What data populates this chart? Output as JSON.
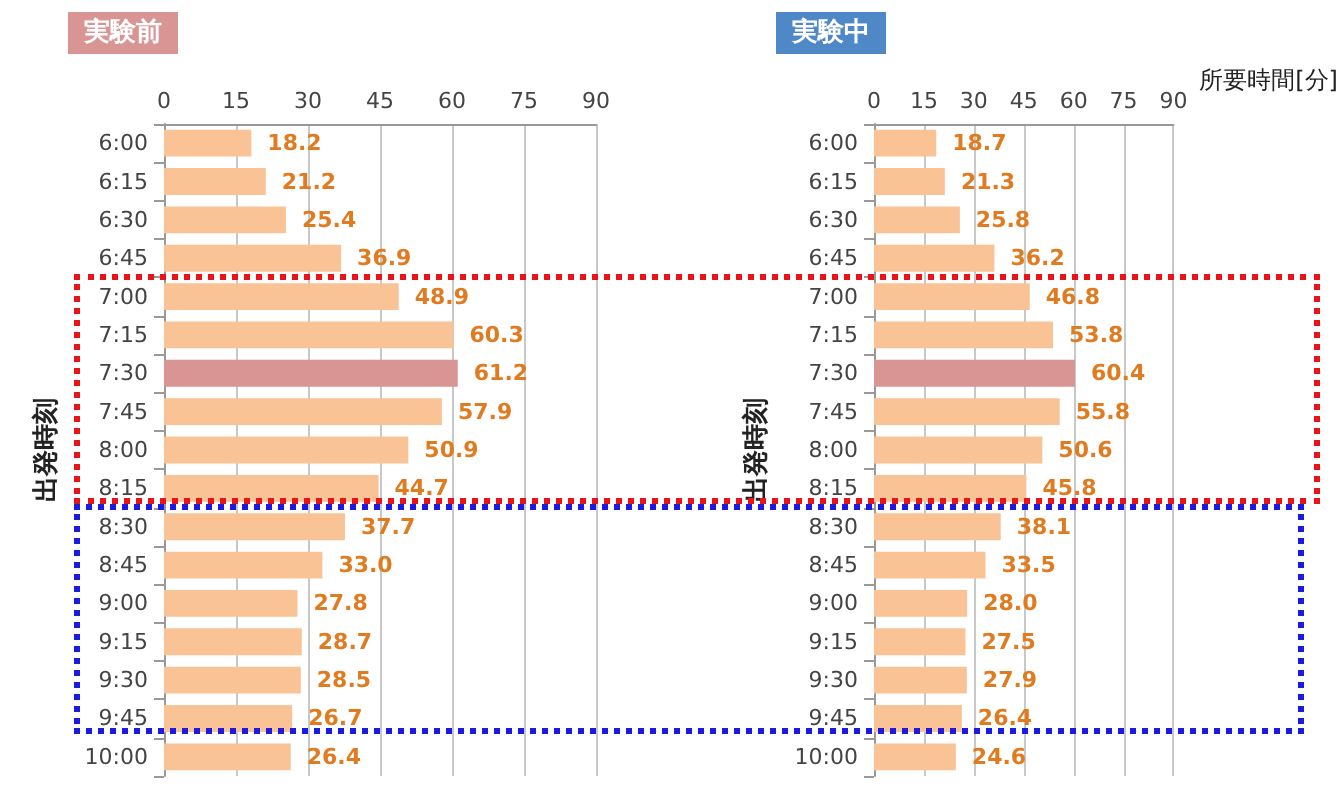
{
  "chart_data": [
    {
      "type": "bar",
      "orientation": "horizontal",
      "title": "実験前",
      "ylabel": "出発時刻",
      "categories": [
        "6:00",
        "6:15",
        "6:30",
        "6:45",
        "7:00",
        "7:15",
        "7:30",
        "7:45",
        "8:00",
        "8:15",
        "8:30",
        "8:45",
        "9:00",
        "9:15",
        "9:30",
        "9:45",
        "10:00"
      ],
      "values": [
        18.2,
        21.2,
        25.4,
        36.9,
        48.9,
        60.3,
        61.2,
        57.9,
        50.9,
        44.7,
        37.7,
        33.0,
        27.8,
        28.7,
        28.5,
        26.7,
        26.4
      ],
      "value_labels": [
        "18.2",
        "21.2",
        "25.4",
        "36.9",
        "48.9",
        "60.3",
        "61.2",
        "57.9",
        "50.9",
        "44.7",
        "37.7",
        "33.0",
        "27.8",
        "28.7",
        "28.5",
        "26.7",
        "26.4"
      ],
      "colors": [
        "#f9c395",
        "#f9c395",
        "#f9c395",
        "#f9c395",
        "#f9c395",
        "#f9c395",
        "#d99594",
        "#f9c395",
        "#f9c395",
        "#f9c395",
        "#f9c395",
        "#f9c395",
        "#f9c395",
        "#f9c395",
        "#f9c395",
        "#f9c395",
        "#f9c395"
      ],
      "xlim": [
        0,
        90
      ],
      "xticks": [
        0,
        15,
        30,
        45,
        60,
        75,
        90
      ],
      "grid": "x"
    },
    {
      "type": "bar",
      "orientation": "horizontal",
      "title": "実験中",
      "ylabel": "出発時刻",
      "xlabel": "所要時間[分]",
      "categories": [
        "6:00",
        "6:15",
        "6:30",
        "6:45",
        "7:00",
        "7:15",
        "7:30",
        "7:45",
        "8:00",
        "8:15",
        "8:30",
        "8:45",
        "9:00",
        "9:15",
        "9:30",
        "9:45",
        "10:00"
      ],
      "values": [
        18.7,
        21.3,
        25.8,
        36.2,
        46.8,
        53.8,
        60.4,
        55.8,
        50.6,
        45.8,
        38.1,
        33.5,
        28.0,
        27.5,
        27.9,
        26.4,
        24.6
      ],
      "value_labels": [
        "18.7",
        "21.3",
        "25.8",
        "36.2",
        "46.8",
        "53.8",
        "60.4",
        "55.8",
        "50.6",
        "45.8",
        "38.1",
        "33.5",
        "28.0",
        "27.5",
        "27.9",
        "26.4",
        "24.6"
      ],
      "colors": [
        "#f9c395",
        "#f9c395",
        "#f9c395",
        "#f9c395",
        "#f9c395",
        "#f9c395",
        "#d99594",
        "#f9c395",
        "#f9c395",
        "#f9c395",
        "#f9c395",
        "#f9c395",
        "#f9c395",
        "#f9c395",
        "#f9c395",
        "#f9c395",
        "#f9c395"
      ],
      "xlim": [
        0,
        90
      ],
      "xticks": [
        0,
        15,
        30,
        45,
        60,
        75,
        90
      ],
      "grid": "x"
    }
  ]
}
